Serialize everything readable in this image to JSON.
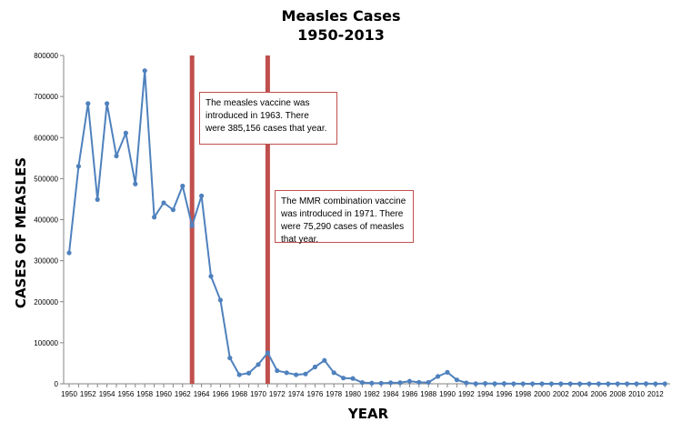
{
  "chart_data": {
    "type": "line",
    "title": "Measles Cases",
    "subtitle": "1950-2013",
    "xlabel": "YEAR",
    "ylabel": "CASES OF MEASLES",
    "ylim": [
      0,
      800000
    ],
    "y_ticks": [
      "0",
      "100000",
      "200000",
      "300000",
      "400000",
      "500000",
      "600000",
      "700000",
      "800000"
    ],
    "grid": false,
    "legend": "none",
    "x": [
      1950,
      1951,
      1952,
      1953,
      1954,
      1955,
      1956,
      1957,
      1958,
      1959,
      1960,
      1961,
      1962,
      1963,
      1964,
      1965,
      1966,
      1967,
      1968,
      1969,
      1970,
      1971,
      1972,
      1973,
      1974,
      1975,
      1976,
      1977,
      1978,
      1979,
      1980,
      1981,
      1982,
      1983,
      1984,
      1985,
      1986,
      1987,
      1988,
      1989,
      1990,
      1991,
      1992,
      1993,
      1994,
      1995,
      1996,
      1997,
      1998,
      1999,
      2000,
      2001,
      2002,
      2003,
      2004,
      2005,
      2006,
      2007,
      2008,
      2009,
      2010,
      2011,
      2012,
      2013
    ],
    "series": [
      {
        "color": "#4f81bd",
        "values": [
          319000,
          530000,
          683000,
          449000,
          683000,
          555000,
          611000,
          487000,
          763000,
          406000,
          441000,
          424000,
          482000,
          385156,
          458000,
          262000,
          204000,
          63000,
          22000,
          26000,
          47000,
          75290,
          32000,
          27000,
          22000,
          24000,
          41000,
          57000,
          27000,
          14000,
          13000,
          3000,
          1700,
          1500,
          2600,
          2800,
          6300,
          3700,
          3400,
          18000,
          28000,
          9600,
          2200,
          300,
          960,
          300,
          510,
          140,
          100,
          100,
          90,
          120,
          40,
          60,
          40,
          70,
          60,
          40,
          140,
          70,
          60,
          220,
          55,
          190
        ]
      }
    ],
    "reference_lines": [
      {
        "x": 1963,
        "color": "#c0504d"
      },
      {
        "x": 1971,
        "color": "#c0504d"
      }
    ],
    "annotations": [
      {
        "text": "The measles vaccine was introduced in 1963. There were 385,156 cases that year."
      },
      {
        "text": "The MMR combination vaccine was introduced in 1971. There were 75,290 cases of measles that year."
      }
    ]
  }
}
